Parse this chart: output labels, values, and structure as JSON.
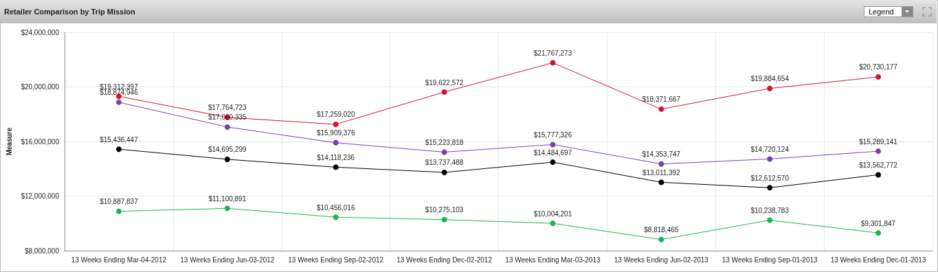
{
  "chart_data": {
    "type": "line",
    "title": "Retailer Comparison by Trip Mission",
    "ylabel": "Measure",
    "annotations": [
      "Legend"
    ],
    "categories": [
      "13 Weeks Ending Mar-04-2012",
      "13 Weeks Ending Jun-03-2012",
      "13 Weeks Ending Sep-02-2012",
      "13 Weeks Ending Dec-02-2012",
      "13 Weeks Ending Mar-03-2013",
      "13 Weeks Ending Jun-02-2013",
      "13 Weeks Ending Sep-01-2013",
      "13 Weeks Ending Dec-01-2013"
    ],
    "series": [
      {
        "color": "#d0142c",
        "values": [
          19312397,
          17764723,
          17259020,
          19622572,
          21767273,
          18371667,
          19884654,
          20730177
        ],
        "value_labels": [
          "$19,312,397",
          "$17,764,723",
          "$17,259,020",
          "$19,622,572",
          "$21,767,273",
          "$18,371,667",
          "$19,884,654",
          "$20,730,177"
        ]
      },
      {
        "color": "#7d3fb0",
        "values": [
          18874946,
          17060335,
          15909376,
          15223818,
          15777326,
          14353747,
          14720124,
          15289141
        ],
        "value_labels": [
          "$18,874,946",
          "$17,060,335",
          "$15,909,376",
          "$15,223,818",
          "$15,777,326",
          "$14,353,747",
          "$14,720,124",
          "$15,289,141"
        ]
      },
      {
        "color": "#000000",
        "values": [
          15436447,
          14695299,
          14118236,
          13737488,
          14484697,
          13011392,
          12612570,
          13562772
        ],
        "value_labels": [
          "$15,436,447",
          "$14,695,299",
          "$14,118,236",
          "$13,737,488",
          "$14,484,697",
          "$13,011,392",
          "$12,612,570",
          "$13,562,772"
        ]
      },
      {
        "color": "#1ab552",
        "values": [
          10887837,
          11100891,
          10456016,
          10275103,
          10004201,
          8818465,
          10238783,
          9301847
        ],
        "value_labels": [
          "$10,887,837",
          "$11,100,891",
          "$10,456,016",
          "$10,275,103",
          "$10,004,201",
          "$8,818,465",
          "$10,238,783",
          "$9,301,847"
        ]
      }
    ],
    "ylim": [
      8000000,
      24000000
    ],
    "yticks": [
      {
        "value": 8000000,
        "label": "$8,000,000"
      },
      {
        "value": 12000000,
        "label": "$12,000,000"
      },
      {
        "value": 16000000,
        "label": "$16,000,000"
      },
      {
        "value": 20000000,
        "label": "$20,000,000"
      },
      {
        "value": 24000000,
        "label": "$24,000,000"
      }
    ],
    "grid": true,
    "marker": "circle",
    "line_style": "solid"
  }
}
